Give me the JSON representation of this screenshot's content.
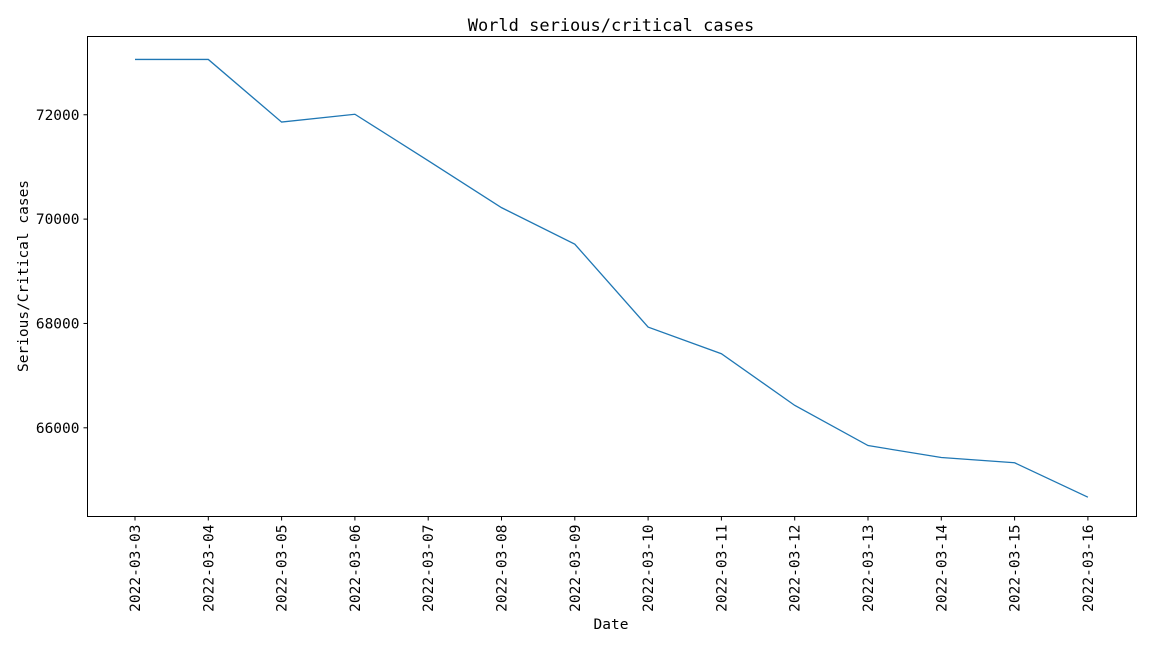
{
  "chart_data": {
    "type": "line",
    "title": "World serious/critical cases",
    "xlabel": "Date",
    "ylabel": "Serious/Critical cases",
    "x": [
      "2022-03-03",
      "2022-03-04",
      "2022-03-05",
      "2022-03-06",
      "2022-03-07",
      "2022-03-08",
      "2022-03-09",
      "2022-03-10",
      "2022-03-11",
      "2022-03-12",
      "2022-03-13",
      "2022-03-14",
      "2022-03-15",
      "2022-03-16"
    ],
    "series": [
      {
        "values": [
          73060,
          73060,
          71860,
          72010,
          71120,
          70220,
          69520,
          67930,
          67420,
          66430,
          65660,
          65430,
          65330,
          64670
        ],
        "color": "#1f77b4"
      }
    ],
    "ylim": [
      64300,
      73500
    ],
    "yticks": [
      66000,
      68000,
      70000,
      72000
    ],
    "ytick_labels": [
      "66000",
      "68000",
      "70000",
      "72000"
    ],
    "grid": false,
    "legend": "none"
  }
}
